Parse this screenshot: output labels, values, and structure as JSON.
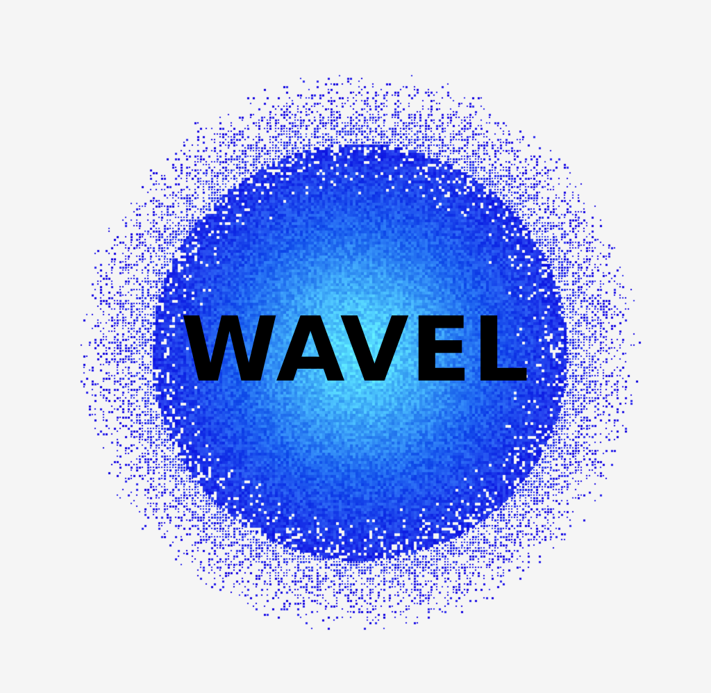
{
  "logo": {
    "text": "WAVEL"
  },
  "colors": {
    "background": "#f5f5f5",
    "orb_core": "#58e0ff",
    "orb_mid": "#1e63f0",
    "orb_edge": "#1d10e6",
    "text": "#000000"
  }
}
